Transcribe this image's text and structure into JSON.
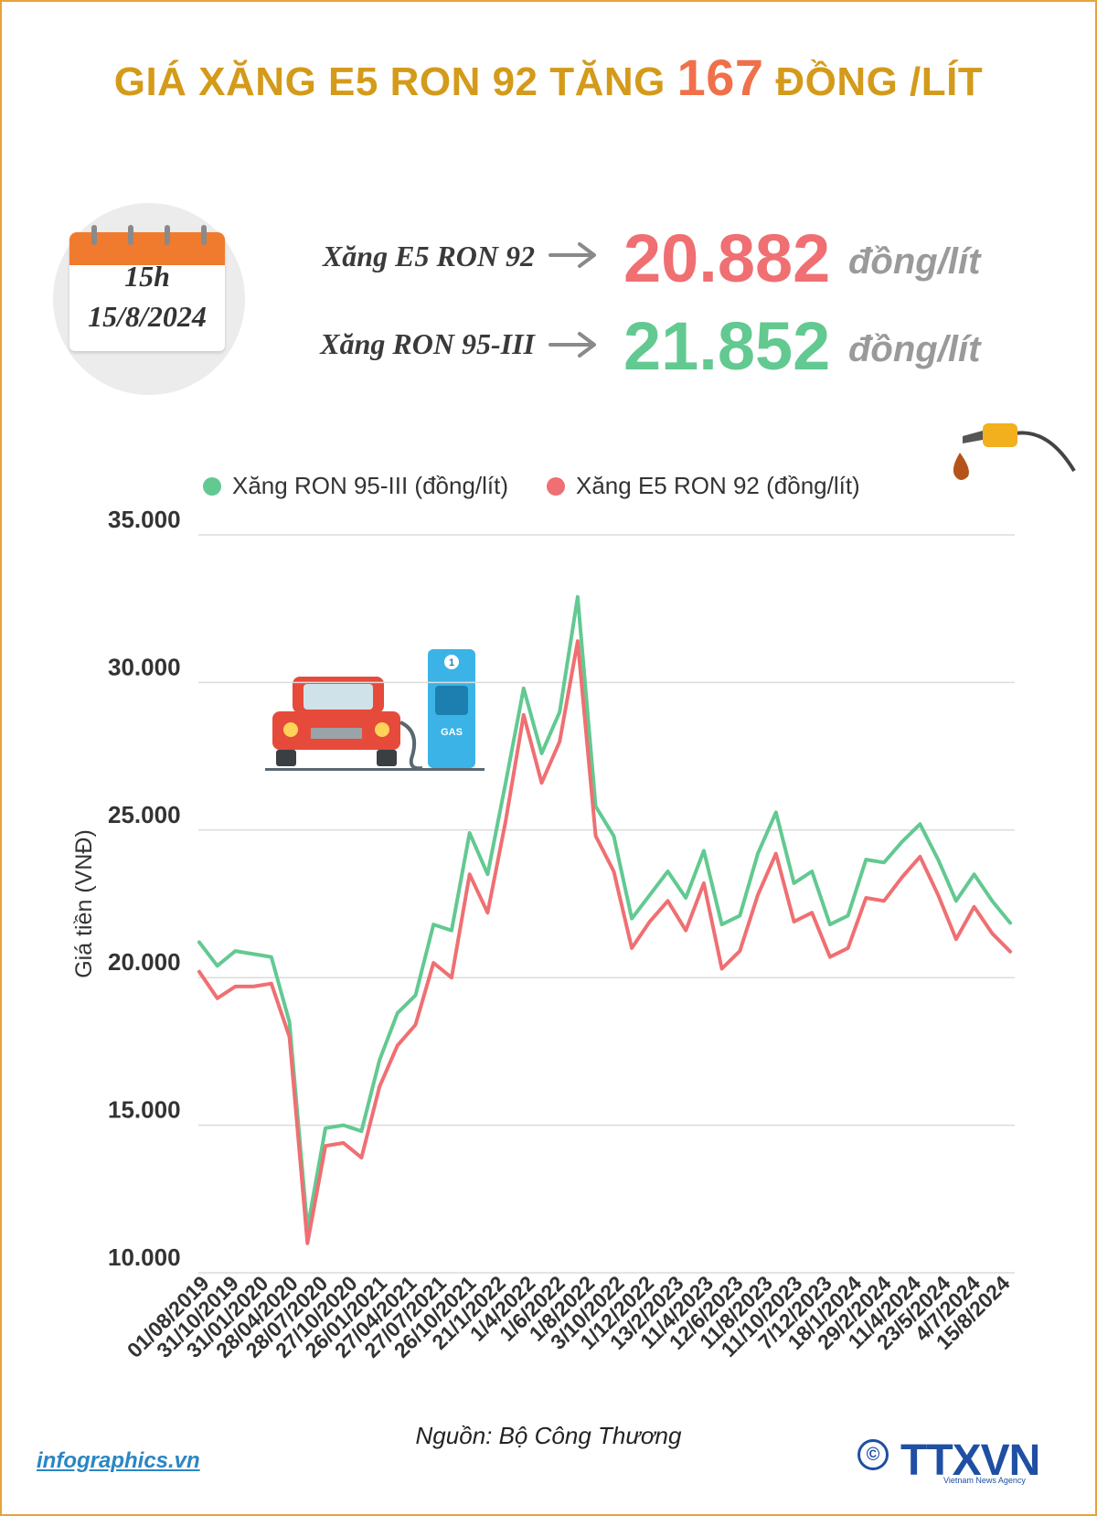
{
  "header": {
    "title_pre": "GIÁ XĂNG E5 RON 92 TĂNG",
    "title_num": "167",
    "title_post": "ĐỒNG /LÍT"
  },
  "calendar": {
    "time": "15h",
    "date": "15/8/2024"
  },
  "prices": [
    {
      "name": "Xăng E5 RON 92",
      "value": "20.882",
      "unit": "đồng/lít",
      "color": "#ef6f72"
    },
    {
      "name": "Xăng RON 95-III",
      "value": "21.852",
      "unit": "đồng/lít",
      "color": "#62c991"
    }
  ],
  "illustration": {
    "pump_number": "1",
    "pump_label": "GAS"
  },
  "chart_data": {
    "type": "line",
    "ylabel": "Giá tiền (VNĐ)",
    "ylim": [
      10000,
      35000
    ],
    "yticks": [
      10000,
      15000,
      20000,
      25000,
      30000,
      35000
    ],
    "ytick_labels": [
      "10.000",
      "15.000",
      "20.000",
      "25.000",
      "30.000",
      "35.000"
    ],
    "grid": true,
    "legend_position": "top",
    "xtick_labels": [
      "01/08/2019",
      "31/10/2019",
      "31/01/2020",
      "28/04/2020",
      "28/07/2020",
      "27/10/2020",
      "26/01/2021",
      "27/04/2021",
      "27/07/2021",
      "26/10/2021",
      "21/1/2022",
      "1/4/2022",
      "1/6/2022",
      "1/8/2022",
      "3/10/2022",
      "1/12/2022",
      "13/2/2023",
      "11/4/2023",
      "12/6/2023",
      "11/8/2023",
      "11/10/2023",
      "7/12/2023",
      "18/1/2024",
      "29/2/2024",
      "11/4/2024",
      "23/5/2024",
      "4/7/2024",
      "15/8/2024"
    ],
    "series": [
      {
        "name": "Xăng RON 95-III (đồng/lít)",
        "color": "#62c991",
        "values": [
          21200,
          20400,
          20900,
          20800,
          20700,
          18500,
          11500,
          14900,
          15000,
          14800,
          17200,
          18800,
          19400,
          21800,
          21600,
          24900,
          23500,
          26600,
          29800,
          27600,
          29000,
          32900,
          25800,
          24800,
          22000,
          22800,
          23600,
          22700,
          24300,
          21800,
          22100,
          24200,
          25600,
          23200,
          23600,
          21800,
          22100,
          24000,
          23900,
          24600,
          25200,
          24000,
          22600,
          23500,
          22600,
          21852
        ]
      },
      {
        "name": "Xăng E5 RON 92 (đồng/lít)",
        "color": "#ef6f72",
        "values": [
          20200,
          19300,
          19700,
          19700,
          19800,
          18000,
          11000,
          14300,
          14400,
          13900,
          16300,
          17700,
          18400,
          20500,
          20000,
          23500,
          22200,
          25300,
          28900,
          26600,
          28000,
          31400,
          24800,
          23600,
          21000,
          21900,
          22600,
          21600,
          23200,
          20300,
          20900,
          22800,
          24200,
          21900,
          22200,
          20700,
          21000,
          22700,
          22600,
          23400,
          24100,
          22800,
          21300,
          22400,
          21500,
          20882
        ]
      }
    ]
  },
  "footer": {
    "source": "Nguồn: Bộ Công Thương",
    "site": "infographics.vn",
    "agency": "TTXVN",
    "agency_sub": "Vietnam News Agency",
    "copyright": "©"
  }
}
